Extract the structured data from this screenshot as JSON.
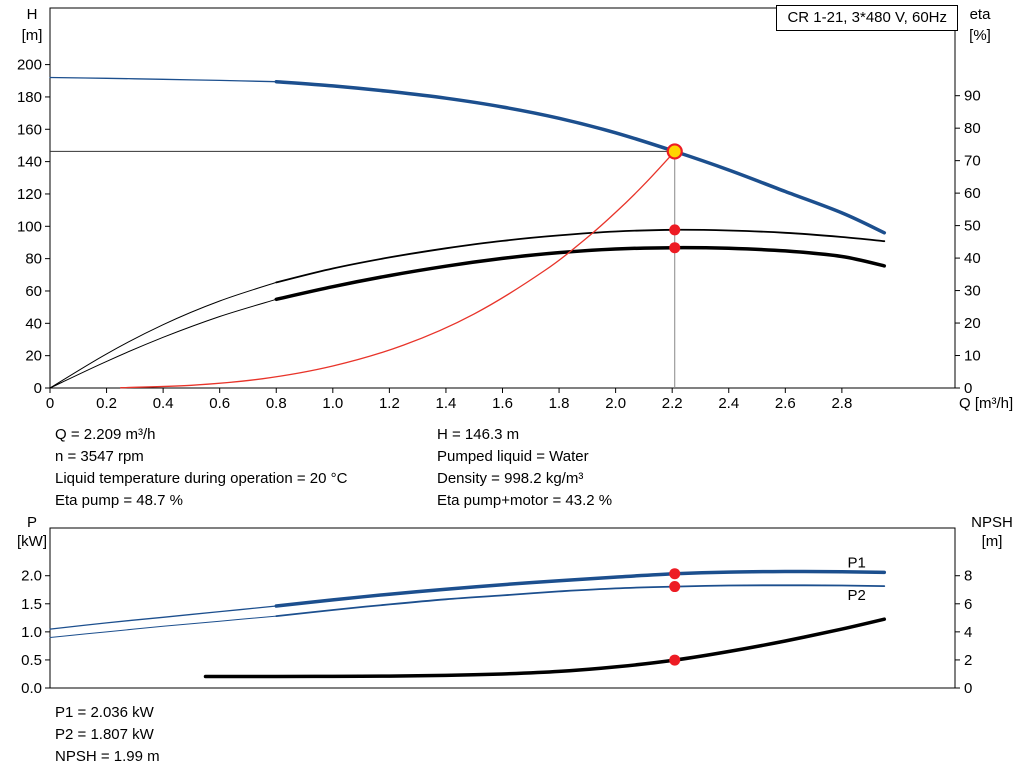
{
  "colors": {
    "curve_blue": "#1c4f8e",
    "curve_black": "#000000",
    "curve_red": "#e8342a",
    "dot_red": "#ed1c24",
    "duty_fill": "#ffd500",
    "crosshair_h": "#333333",
    "crosshair_v": "#888888"
  },
  "chart_data": [
    {
      "type": "line",
      "title": "CR 1-21, 3*480 V, 60Hz",
      "x": {
        "min": 0,
        "max": 3.2,
        "label": "Q [m³/h]",
        "ticks": [
          0,
          0.2,
          0.4,
          0.6,
          0.8,
          1,
          1.2,
          1.4,
          1.6,
          1.8,
          2,
          2.2,
          2.4,
          2.6,
          2.8
        ],
        "tick_labels": [
          "0",
          "0.2",
          "0.4",
          "0.6",
          "0.8",
          "1.0",
          "1.2",
          "1.4",
          "1.6",
          "1.8",
          "2.0",
          "2.2",
          "2.4",
          "2.6",
          "2.8"
        ]
      },
      "left_axis": {
        "title": [
          "H",
          "[m]"
        ],
        "min": 0,
        "max": 235,
        "ticks": [
          0,
          20,
          40,
          60,
          80,
          100,
          120,
          140,
          160,
          180,
          200
        ]
      },
      "right_axis": {
        "title": [
          "eta",
          "[%]"
        ],
        "min": 0,
        "max": 117,
        "ticks": [
          0,
          10,
          20,
          30,
          40,
          50,
          60,
          70,
          80,
          90
        ]
      },
      "series": [
        {
          "name": "h-curve-ext",
          "axis": "left",
          "color": "#1c4f8e",
          "width": 1.3,
          "points": [
            [
              0,
              192
            ],
            [
              0.2,
              191.5
            ],
            [
              0.4,
              190.9
            ],
            [
              0.6,
              190.2
            ],
            [
              0.8,
              189.4
            ]
          ]
        },
        {
          "name": "h-curve",
          "axis": "left",
          "color": "#1c4f8e",
          "width": 3.5,
          "points": [
            [
              0.8,
              189.4
            ],
            [
              1.0,
              186.8
            ],
            [
              1.2,
              183.4
            ],
            [
              1.4,
              179.2
            ],
            [
              1.6,
              173.8
            ],
            [
              1.8,
              166.8
            ],
            [
              2.0,
              157.8
            ],
            [
              2.209,
              146.3
            ],
            [
              2.4,
              134.8
            ],
            [
              2.6,
              121.5
            ],
            [
              2.8,
              108.3
            ],
            [
              2.95,
              96
            ]
          ]
        },
        {
          "name": "eta-pump-ext",
          "axis": "right",
          "color": "#000000",
          "width": 1,
          "points": [
            [
              0,
              0
            ],
            [
              0.2,
              10.5
            ],
            [
              0.4,
              19.5
            ],
            [
              0.6,
              26.8
            ],
            [
              0.8,
              32.5
            ]
          ]
        },
        {
          "name": "eta-pump-curve",
          "axis": "right",
          "color": "#000000",
          "width": 1.8,
          "points": [
            [
              0.8,
              32.5
            ],
            [
              1.0,
              36.8
            ],
            [
              1.2,
              40.2
            ],
            [
              1.4,
              43.0
            ],
            [
              1.6,
              45.3
            ],
            [
              1.8,
              47.0
            ],
            [
              2.0,
              48.2
            ],
            [
              2.209,
              48.7
            ],
            [
              2.4,
              48.5
            ],
            [
              2.6,
              47.8
            ],
            [
              2.8,
              46.5
            ],
            [
              2.95,
              45.2
            ]
          ]
        },
        {
          "name": "eta-pump-motor-ext",
          "axis": "right",
          "color": "#000000",
          "width": 1,
          "points": [
            [
              0,
              0
            ],
            [
              0.2,
              8.2
            ],
            [
              0.4,
              15.6
            ],
            [
              0.6,
              22.0
            ],
            [
              0.8,
              27.3
            ]
          ]
        },
        {
          "name": "eta-pump-motor-curve",
          "axis": "right",
          "color": "#000000",
          "width": 3.5,
          "points": [
            [
              0.8,
              27.3
            ],
            [
              1.0,
              31.2
            ],
            [
              1.2,
              34.6
            ],
            [
              1.4,
              37.5
            ],
            [
              1.6,
              39.9
            ],
            [
              1.8,
              41.7
            ],
            [
              2.0,
              42.8
            ],
            [
              2.209,
              43.2
            ],
            [
              2.4,
              43.0
            ],
            [
              2.6,
              42.2
            ],
            [
              2.8,
              40.5
            ],
            [
              2.95,
              37.6
            ]
          ]
        },
        {
          "name": "duty-system-curve",
          "axis": "left",
          "color": "#e8342a",
          "width": 1.3,
          "points": [
            [
              0.25,
              0.2
            ],
            [
              0.5,
              1.7
            ],
            [
              0.75,
              5.7
            ],
            [
              1.0,
              13.6
            ],
            [
              1.25,
              26.5
            ],
            [
              1.5,
              45.8
            ],
            [
              1.75,
              72.7
            ],
            [
              1.9,
              93.1
            ],
            [
              2.0,
              108.6
            ],
            [
              2.1,
              125.7
            ],
            [
              2.209,
              146.3
            ]
          ]
        }
      ],
      "crosshair": {
        "x": 2.209,
        "y": 146.3
      },
      "markers": [
        {
          "name": "eta-pump-point",
          "x": 2.209,
          "y": 48.7,
          "axis": "right",
          "style": "dot"
        },
        {
          "name": "eta-pump-motor-point",
          "x": 2.209,
          "y": 43.2,
          "axis": "right",
          "style": "dot"
        },
        {
          "name": "duty-point",
          "x": 2.209,
          "y": 146.3,
          "axis": "left",
          "style": "duty"
        }
      ],
      "labels": []
    },
    {
      "type": "line",
      "title": "",
      "x": {
        "min": 0,
        "max": 3.2,
        "label": "",
        "ticks": [],
        "tick_labels": []
      },
      "left_axis": {
        "title": [
          "P",
          "[kW]"
        ],
        "min": 0,
        "max": 2.85,
        "ticks": [
          0,
          0.5,
          1,
          1.5,
          2
        ],
        "tick_labels": [
          "0.0",
          "0.5",
          "1.0",
          "1.5",
          "2.0"
        ]
      },
      "right_axis": {
        "title": [
          "NPSH",
          "[m]"
        ],
        "min": 0,
        "max": 11.4,
        "ticks": [
          0,
          2,
          4,
          6,
          8
        ]
      },
      "series": [
        {
          "name": "p1-ext",
          "axis": "left",
          "color": "#1c4f8e",
          "width": 1.3,
          "points": [
            [
              0,
              1.05
            ],
            [
              0.2,
              1.16
            ],
            [
              0.4,
              1.26
            ],
            [
              0.6,
              1.36
            ],
            [
              0.8,
              1.46
            ]
          ]
        },
        {
          "name": "p1-curve",
          "axis": "left",
          "color": "#1c4f8e",
          "width": 3.5,
          "points": [
            [
              0.8,
              1.46
            ],
            [
              1.0,
              1.57
            ],
            [
              1.2,
              1.67
            ],
            [
              1.4,
              1.76
            ],
            [
              1.6,
              1.84
            ],
            [
              1.8,
              1.91
            ],
            [
              2.0,
              1.975
            ],
            [
              2.209,
              2.036
            ],
            [
              2.4,
              2.065
            ],
            [
              2.6,
              2.075
            ],
            [
              2.8,
              2.07
            ],
            [
              2.95,
              2.06
            ]
          ]
        },
        {
          "name": "p2-ext",
          "axis": "left",
          "color": "#1c4f8e",
          "width": 1,
          "points": [
            [
              0,
              0.9
            ],
            [
              0.2,
              1.0
            ],
            [
              0.4,
              1.1
            ],
            [
              0.6,
              1.19
            ],
            [
              0.8,
              1.28
            ]
          ]
        },
        {
          "name": "p2-curve",
          "axis": "left",
          "color": "#1c4f8e",
          "width": 1.8,
          "points": [
            [
              0.8,
              1.28
            ],
            [
              1.0,
              1.39
            ],
            [
              1.2,
              1.49
            ],
            [
              1.4,
              1.58
            ],
            [
              1.6,
              1.65
            ],
            [
              1.8,
              1.72
            ],
            [
              2.0,
              1.775
            ],
            [
              2.209,
              1.807
            ],
            [
              2.4,
              1.825
            ],
            [
              2.6,
              1.83
            ],
            [
              2.8,
              1.825
            ],
            [
              2.95,
              1.815
            ]
          ]
        },
        {
          "name": "npsh-curve",
          "axis": "right",
          "color": "#000000",
          "width": 3.5,
          "points": [
            [
              0.55,
              0.82
            ],
            [
              0.8,
              0.82
            ],
            [
              1.0,
              0.83
            ],
            [
              1.2,
              0.85
            ],
            [
              1.4,
              0.9
            ],
            [
              1.6,
              1.0
            ],
            [
              1.8,
              1.18
            ],
            [
              2.0,
              1.5
            ],
            [
              2.209,
              1.99
            ],
            [
              2.4,
              2.6
            ],
            [
              2.6,
              3.35
            ],
            [
              2.8,
              4.2
            ],
            [
              2.95,
              4.9
            ]
          ]
        }
      ],
      "crosshair": null,
      "markers": [
        {
          "name": "p1-point",
          "x": 2.209,
          "y": 2.036,
          "axis": "left",
          "style": "dot"
        },
        {
          "name": "p2-point",
          "x": 2.209,
          "y": 1.807,
          "axis": "left",
          "style": "dot"
        },
        {
          "name": "npsh-point",
          "x": 2.209,
          "y": 1.99,
          "axis": "right",
          "style": "dot"
        }
      ],
      "labels": [
        {
          "text": "P1",
          "x": 2.82,
          "y": 2.15,
          "axis": "left",
          "color": "#1c4f8e"
        },
        {
          "text": "P2",
          "x": 2.82,
          "y": 1.57,
          "axis": "left",
          "color": "#1c4f8e"
        }
      ]
    }
  ],
  "info_top_left": [
    "Q = 2.209 m³/h",
    "n = 3547 rpm",
    "Liquid temperature during operation = 20 °C",
    "Eta pump = 48.7 %"
  ],
  "info_top_right": [
    "H = 146.3 m",
    "Pumped liquid = Water",
    "Density = 998.2 kg/m³",
    "Eta pump+motor = 43.2 %"
  ],
  "info_bottom": [
    "P1 = 2.036 kW",
    "P2 = 1.807 kW",
    "NPSH = 1.99 m"
  ]
}
